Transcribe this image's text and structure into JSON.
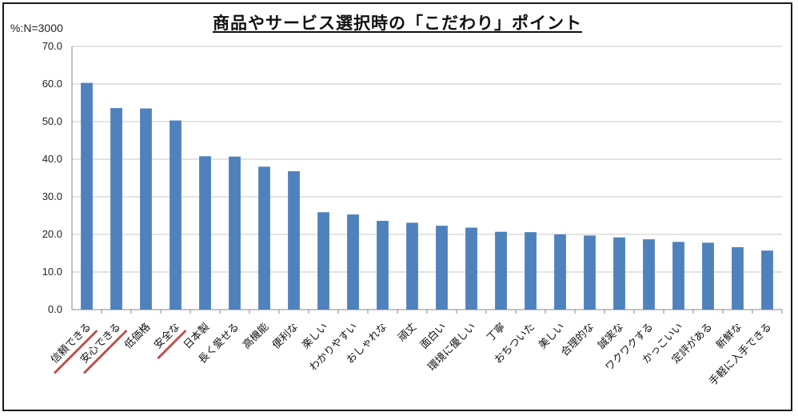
{
  "chart_data": {
    "type": "bar",
    "title": "商品やサービス選択時の「こだわり」ポイント",
    "unit_label": "%:N=3000",
    "ylim": [
      0,
      70
    ],
    "y_ticks": [
      "0.0",
      "10.0",
      "20.0",
      "30.0",
      "40.0",
      "50.0",
      "60.0",
      "70.0"
    ],
    "grid": true,
    "bar_color": "#4f81bd",
    "highlight_color": "#c0504d",
    "categories": [
      "信頼できる",
      "安心できる",
      "低価格",
      "安全な",
      "日本製",
      "長く愛せる",
      "高機能",
      "便利な",
      "楽しい",
      "わかりやすい",
      "おしゃれな",
      "頑丈",
      "面白い",
      "環境に優しい",
      "丁寧",
      "おちついた",
      "美しい",
      "合理的な",
      "誠実な",
      "ワクワクする",
      "かっこいい",
      "定評がある",
      "新鮮な",
      "手軽に入手できる"
    ],
    "values": [
      60.3,
      53.6,
      53.5,
      50.3,
      40.8,
      40.7,
      38.0,
      36.8,
      25.9,
      25.3,
      23.6,
      23.1,
      22.3,
      21.8,
      20.7,
      20.6,
      20.0,
      19.7,
      19.2,
      18.7,
      18.0,
      17.8,
      16.6,
      15.7
    ],
    "highlighted": [
      "信頼できる",
      "安心できる",
      "安全な"
    ]
  }
}
